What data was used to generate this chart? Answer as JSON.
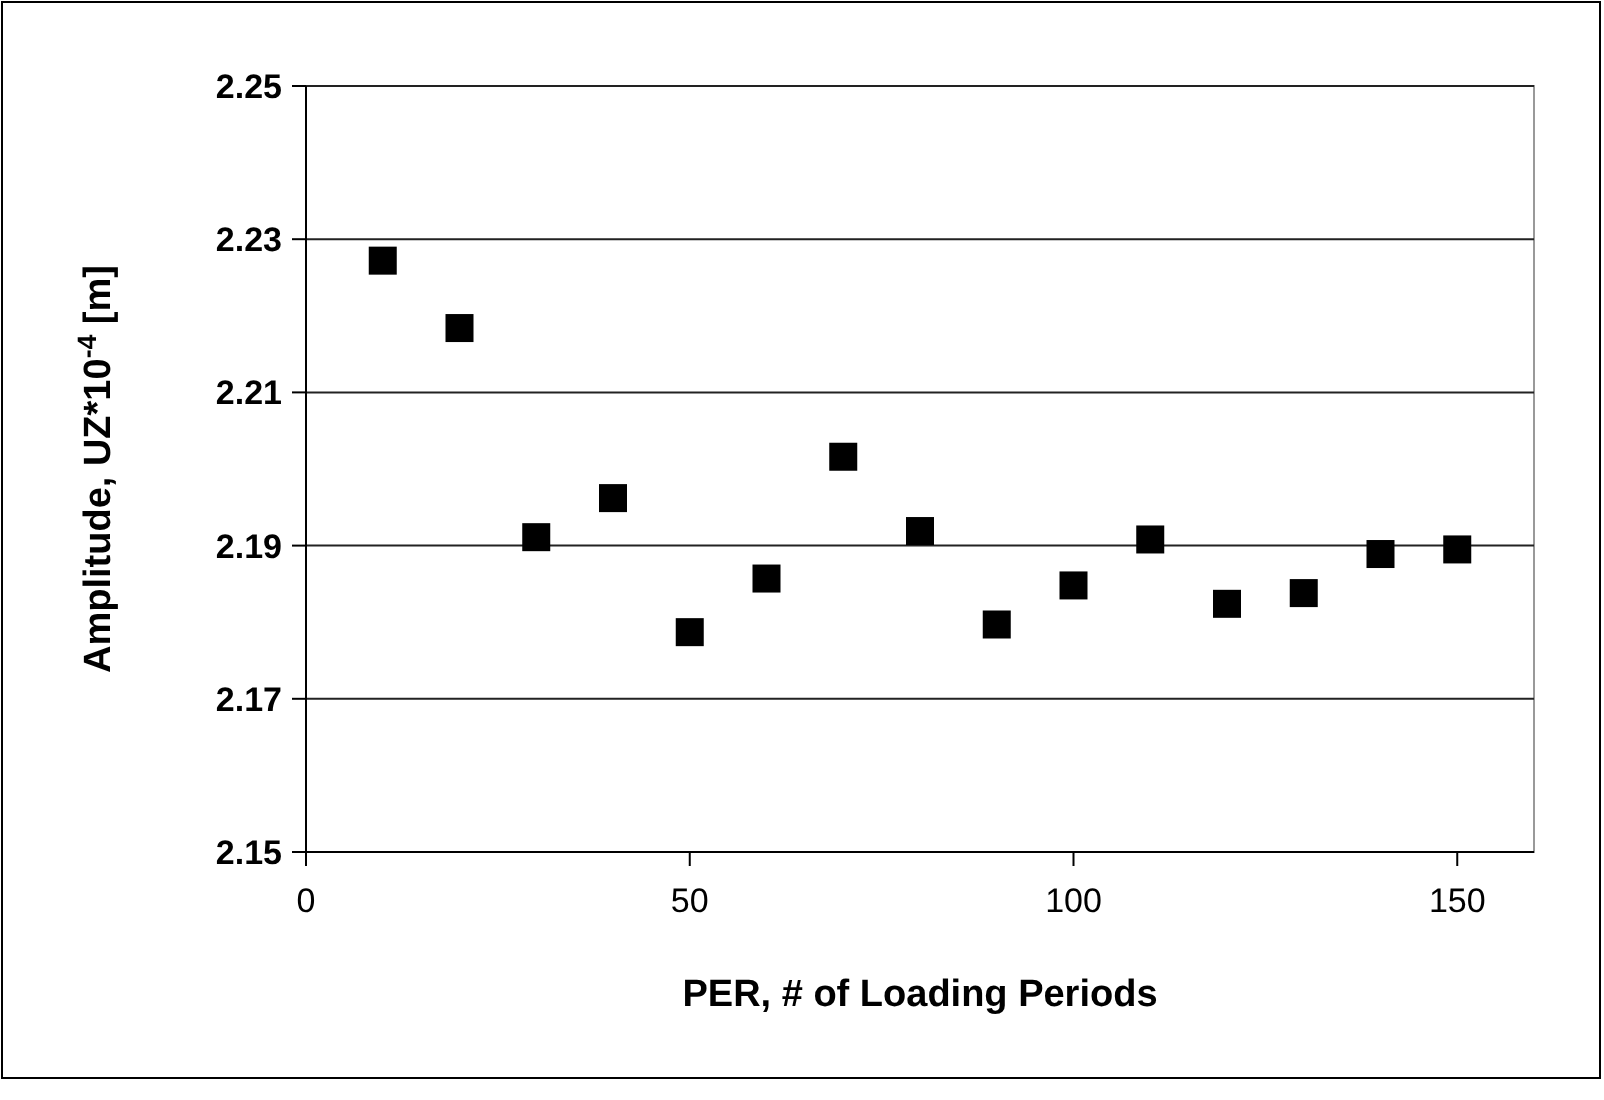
{
  "chart_data": {
    "type": "scatter",
    "xlabel": "PER, # of Loading Periods",
    "ylabel": "Amplitude, UZ*10$^{-4}$  [m]",
    "x": [
      10,
      20,
      30,
      40,
      50,
      60,
      70,
      80,
      90,
      100,
      110,
      120,
      130,
      140,
      150
    ],
    "series": [
      {
        "color": "#000000",
        "values": [
          2.2272,
          2.2184,
          2.1911,
          2.1962,
          2.1787,
          2.1857,
          2.2016,
          2.1919,
          2.1797,
          2.1848,
          2.1908,
          2.1824,
          2.1838,
          2.1889,
          2.1895
        ]
      }
    ],
    "xlim": [
      0,
      160
    ],
    "xticks": [
      0,
      50,
      100,
      150
    ],
    "ylim": [
      2.15,
      2.25
    ],
    "yticks": [
      2.15,
      2.17,
      2.19,
      2.21,
      2.23,
      2.25
    ],
    "grid": "y",
    "marker": "square"
  }
}
